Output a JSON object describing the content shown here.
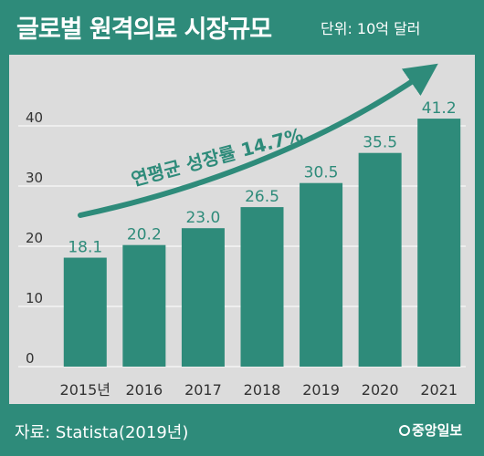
{
  "header": {
    "title": "글로벌 원격의료 시장규모",
    "unit": "단위: 10억 달러"
  },
  "footer": {
    "source": "자료: Statista(2019년)",
    "brand": "중앙일보"
  },
  "colors": {
    "bar": "#2e8b7a",
    "panel": "#dcdcdc",
    "text": "#333333",
    "label": "#2e8b7a"
  },
  "chart_data": {
    "type": "bar",
    "title": "글로벌 원격의료 시장규모",
    "subtitle": "단위: 10억 달러",
    "categories": [
      "2015년",
      "2016",
      "2017",
      "2018",
      "2019",
      "2020",
      "2021"
    ],
    "values": [
      18.1,
      20.2,
      23.0,
      26.5,
      30.5,
      35.5,
      41.2
    ],
    "value_labels": [
      "18.1",
      "20.2",
      "23.0",
      "26.5",
      "30.5",
      "35.5",
      "41.2"
    ],
    "yticks": [
      "0",
      "10",
      "20",
      "30",
      "40"
    ],
    "ylim": [
      0,
      40
    ],
    "grid": true,
    "annotation": "연평균 성장률 14.7%"
  }
}
